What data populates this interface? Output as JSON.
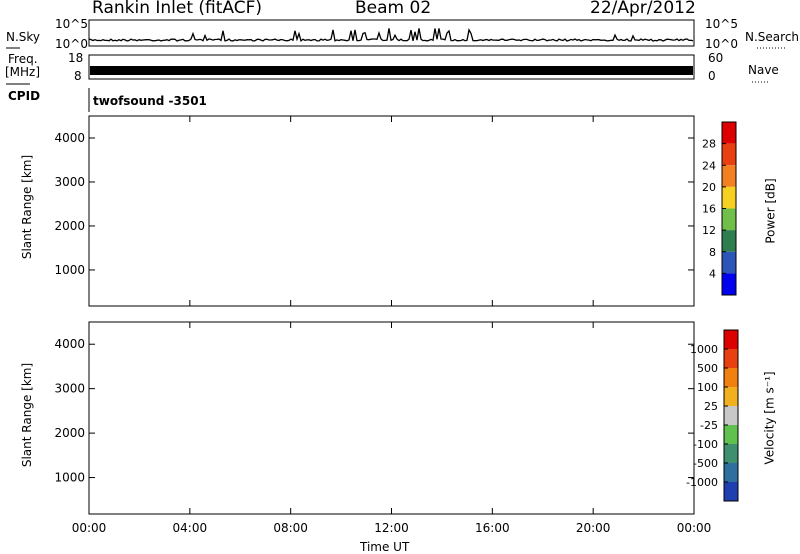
{
  "header": {
    "station": "Rankin Inlet (fitACF)",
    "beam": "Beam 02",
    "date": "22/Apr/2012"
  },
  "aux": {
    "nsky_label": "N.Sky",
    "nsearch_label": "N.Search",
    "freq_label": "Freq.",
    "freq_unit": "[MHz]",
    "nave_label": "Nave",
    "cpid_label": "CPID",
    "cpid_value": "twofsound -3501",
    "noise_ticks": [
      "10^5",
      "10^0"
    ],
    "freq_ticks": [
      "18",
      "8"
    ],
    "nave_ticks": [
      "60",
      "0"
    ]
  },
  "chart_data": [
    {
      "type": "heatmap",
      "panel": "power",
      "ylabel": "Slant Range [km]",
      "yticks": [
        1000,
        2000,
        3000,
        4000
      ],
      "ylim": [
        180,
        4500
      ],
      "xlim": [
        0,
        24
      ],
      "xticks": [
        "00:00",
        "04:00",
        "08:00",
        "12:00",
        "16:00",
        "20:00",
        "00:00"
      ],
      "colorbar": {
        "label": "Power [dB]",
        "ticks": [
          "28",
          "24",
          "20",
          "16",
          "12",
          "8",
          "4"
        ],
        "colors": [
          "#0000ee",
          "#2b55b8",
          "#2e7d4e",
          "#6fbf4a",
          "#f5d020",
          "#f38020",
          "#e84010",
          "#dd0000"
        ]
      }
    },
    {
      "type": "heatmap",
      "panel": "velocity",
      "ylabel": "Slant Range [km]",
      "yticks": [
        1000,
        2000,
        3000,
        4000
      ],
      "ylim": [
        180,
        4500
      ],
      "xlim": [
        0,
        24
      ],
      "xticks": [
        "00:00",
        "04:00",
        "08:00",
        "12:00",
        "16:00",
        "20:00",
        "00:00"
      ],
      "xlabel": "Time UT",
      "colorbar": {
        "label": "Velocity [m s⁻¹]",
        "ticks": [
          "1000",
          "500",
          "100",
          "25",
          "-25",
          "-100",
          "-500",
          "-1000"
        ],
        "colors": [
          "#1f3fb0",
          "#2f6fa0",
          "#3f8f70",
          "#60c050",
          "#c8c8c8",
          "#f0b020",
          "#f08010",
          "#e84010",
          "#dd0000"
        ]
      }
    }
  ]
}
